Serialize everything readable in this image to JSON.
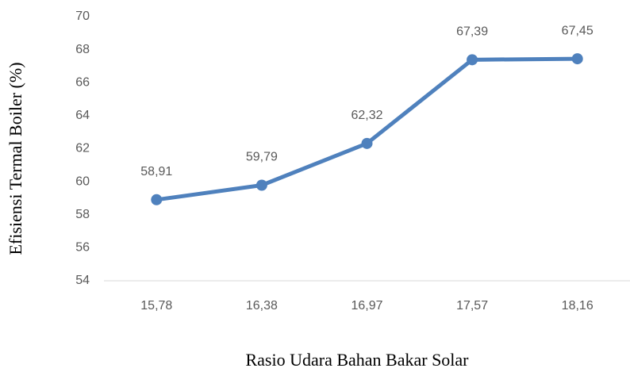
{
  "chart_data": {
    "type": "line",
    "x_label": "Rasio Udara Bahan Bakar Solar",
    "y_label": "Efisiensi Termal Boiler (%)",
    "categories": [
      "15,78",
      "16,38",
      "16,97",
      "17,57",
      "18,16"
    ],
    "values": [
      58.91,
      59.79,
      62.32,
      67.39,
      67.45
    ],
    "value_labels": [
      "58,91",
      "59,79",
      "62,32",
      "67,39",
      "67,45"
    ],
    "color": "#4f81bd",
    "ylim": [
      54,
      70
    ],
    "yticks": [
      54,
      56,
      58,
      60,
      62,
      64,
      66,
      68,
      70
    ],
    "grid": false
  }
}
